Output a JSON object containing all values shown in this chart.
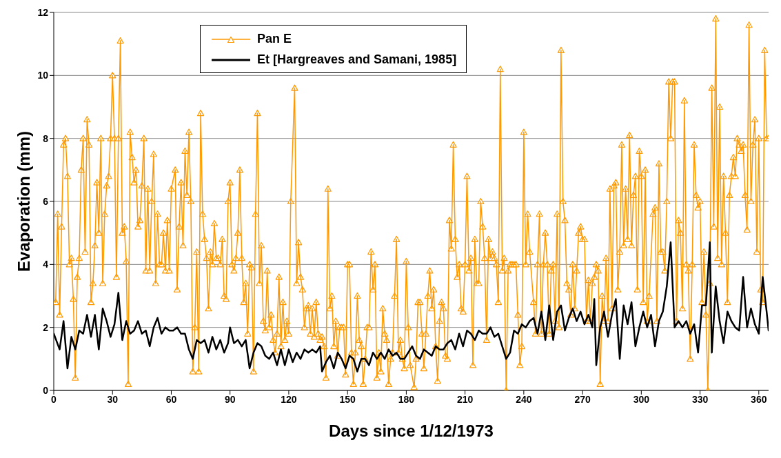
{
  "chart_data": {
    "type": "line",
    "xlabel": "Days since 1/12/1973",
    "ylabel": "Evaporation (mm)",
    "xlim": [
      0,
      365
    ],
    "xticks": [
      0,
      30,
      60,
      90,
      120,
      150,
      180,
      210,
      240,
      270,
      300,
      330,
      360
    ],
    "ylim": [
      0,
      12
    ],
    "yticks": [
      0,
      2,
      4,
      6,
      8,
      10,
      12
    ],
    "grid": "y",
    "legend": "top",
    "series": [
      {
        "name": "Pan E",
        "color": "#ff9900",
        "marker": "triangle",
        "x": [
          1,
          2,
          3,
          4,
          5,
          6,
          7,
          8,
          9,
          10,
          11,
          12,
          13,
          14,
          15,
          16,
          17,
          18,
          19,
          20,
          21,
          22,
          23,
          24,
          25,
          26,
          27,
          28,
          29,
          30,
          31,
          32,
          33,
          34,
          35,
          36,
          37,
          38,
          39,
          40,
          41,
          42,
          43,
          44,
          45,
          46,
          47,
          48,
          49,
          50,
          51,
          52,
          53,
          54,
          55,
          56,
          57,
          58,
          59,
          60,
          62,
          63,
          64,
          65,
          66,
          67,
          68,
          69,
          70,
          71,
          72,
          73,
          74,
          75,
          76,
          77,
          78,
          79,
          80,
          81,
          82,
          83,
          84,
          85,
          86,
          87,
          88,
          89,
          90,
          91,
          92,
          93,
          94,
          95,
          96,
          97,
          98,
          99,
          100,
          101,
          102,
          103,
          104,
          105,
          106,
          107,
          108,
          109,
          110,
          111,
          112,
          113,
          114,
          115,
          116,
          117,
          118,
          119,
          120,
          121,
          123,
          124,
          125,
          126,
          127,
          128,
          129,
          130,
          131,
          132,
          133,
          134,
          135,
          136,
          137,
          138,
          139,
          140,
          141,
          142,
          143,
          144,
          145,
          146,
          147,
          148,
          149,
          150,
          151,
          152,
          153,
          154,
          155,
          156,
          157,
          158,
          159,
          160,
          161,
          162,
          163,
          164,
          165,
          166,
          167,
          168,
          169,
          170,
          171,
          172,
          173,
          174,
          175,
          176,
          177,
          178,
          179,
          180,
          181,
          182,
          184,
          185,
          186,
          187,
          188,
          189,
          190,
          191,
          192,
          193,
          194,
          195,
          196,
          197,
          198,
          199,
          200,
          201,
          202,
          203,
          204,
          205,
          206,
          207,
          208,
          209,
          210,
          211,
          212,
          213,
          214,
          215,
          216,
          217,
          218,
          219,
          220,
          221,
          222,
          223,
          224,
          225,
          226,
          227,
          228,
          229,
          230,
          231,
          232,
          233,
          234,
          235,
          236,
          237,
          238,
          239,
          240,
          241,
          242,
          243,
          245,
          246,
          247,
          248,
          249,
          250,
          251,
          252,
          253,
          254,
          255,
          256,
          257,
          258,
          259,
          260,
          261,
          262,
          263,
          264,
          265,
          266,
          267,
          268,
          269,
          270,
          271,
          272,
          273,
          274,
          275,
          276,
          277,
          278,
          279,
          280,
          281,
          282,
          283,
          284,
          285,
          286,
          287,
          288,
          289,
          290,
          291,
          292,
          293,
          294,
          295,
          296,
          297,
          298,
          299,
          300,
          301,
          302,
          303,
          304,
          306,
          307,
          308,
          309,
          310,
          311,
          312,
          313,
          314,
          315,
          316,
          317,
          318,
          319,
          320,
          321,
          322,
          323,
          324,
          325,
          326,
          327,
          328,
          329,
          330,
          331,
          332,
          333,
          334,
          335,
          336,
          337,
          338,
          339,
          340,
          341,
          342,
          343,
          344,
          345,
          346,
          347,
          348,
          349,
          350,
          351,
          352,
          353,
          354,
          355,
          356,
          357,
          358,
          359,
          360,
          361,
          362,
          363,
          364,
          365
        ],
        "values": [
          2.8,
          5.6,
          2.4,
          5.2,
          7.8,
          8.0,
          6.8,
          4.0,
          4.2,
          2.9,
          0.4,
          3.6,
          4.2,
          7.0,
          8.0,
          4.4,
          8.6,
          7.8,
          2.8,
          3.4,
          4.6,
          6.6,
          5.0,
          8.0,
          3.4,
          5.6,
          6.5,
          6.8,
          8.0,
          10.0,
          8.0,
          3.6,
          8.0,
          11.1,
          5.0,
          5.2,
          4.1,
          0.2,
          8.2,
          7.4,
          6.6,
          7.0,
          5.2,
          5.4,
          6.5,
          8.0,
          3.8,
          6.4,
          3.8,
          6.0,
          7.5,
          3.4,
          5.6,
          4.0,
          4.0,
          5.0,
          3.8,
          5.4,
          3.8,
          6.4,
          7.0,
          3.2,
          5.2,
          6.6,
          4.6,
          7.6,
          6.2,
          8.2,
          6.0,
          0.6,
          2.0,
          4.4,
          0.6,
          8.8,
          5.6,
          4.8,
          4.2,
          2.6,
          4.4,
          4.0,
          5.3,
          4.2,
          4.2,
          4.0,
          4.8,
          3.0,
          2.9,
          6.0,
          6.6,
          4.0,
          3.8,
          4.2,
          5.0,
          7.0,
          4.2,
          2.8,
          3.4,
          1.8,
          4.0,
          3.9,
          0.6,
          5.6,
          8.8,
          3.4,
          4.6,
          2.2,
          1.9,
          3.8,
          2.0,
          2.4,
          1.6,
          1.2,
          1.8,
          3.6,
          1.4,
          2.8,
          1.6,
          2.2,
          1.8,
          6.0,
          9.6,
          3.4,
          4.7,
          3.6,
          3.2,
          2.0,
          2.6,
          2.7,
          1.8,
          2.6,
          1.7,
          2.8,
          1.8,
          1.6,
          1.7,
          1.4,
          0.4,
          6.4,
          2.6,
          3.0,
          1.4,
          2.2,
          1.1,
          2.0,
          2.0,
          2.0,
          0.5,
          4.0,
          4.0,
          1.2,
          0.2,
          1.2,
          3.0,
          1.6,
          1.4,
          0.2,
          1.0,
          2.0,
          2.0,
          4.4,
          3.2,
          4.0,
          0.4,
          1.2,
          0.6,
          2.6,
          1.8,
          1.6,
          0.2,
          1.0,
          1.2,
          3.0,
          4.8,
          1.2,
          1.6,
          1.0,
          0.7,
          4.1,
          2.0,
          0.8,
          0.1,
          1.0,
          2.8,
          2.8,
          1.8,
          0.7,
          1.8,
          3.0,
          3.8,
          2.6,
          3.2,
          1.4,
          0.3,
          2.2,
          2.8,
          2.6,
          1.1,
          1.0,
          5.4,
          4.5,
          7.8,
          4.8,
          3.6,
          4.0,
          2.6,
          2.5,
          4.0,
          6.8,
          3.8,
          4.2,
          0.8,
          4.8,
          3.4,
          3.4,
          6.0,
          5.2,
          4.2,
          1.6,
          4.8,
          4.2,
          4.4,
          4.2,
          4.0,
          2.8,
          10.2,
          3.8,
          4.2,
          0.0,
          3.8,
          4.0,
          4.0,
          4.0,
          4.0,
          2.4,
          0.8,
          1.4,
          8.2,
          4.0,
          5.6,
          4.4,
          2.8,
          1.8,
          4.0,
          5.6,
          1.8,
          4.0,
          5.0,
          4.0,
          1.8,
          3.8,
          4.0,
          2.2,
          5.6,
          2.0,
          10.8,
          6.0,
          5.4,
          3.4,
          3.2,
          2.4,
          4.0,
          2.6,
          3.8,
          5.0,
          5.2,
          4.8,
          4.8,
          2.2,
          3.5,
          2.2,
          3.4,
          3.6,
          4.0,
          3.8,
          0.2,
          3.0,
          2.2,
          4.2,
          2.2,
          6.4,
          2.6,
          6.5,
          6.6,
          3.2,
          4.4,
          7.8,
          4.6,
          6.4,
          4.8,
          8.1,
          4.6,
          6.2,
          6.8,
          3.2,
          7.6,
          6.8,
          2.8,
          7.0,
          2.2,
          3.0,
          5.6,
          5.8,
          2.2,
          7.2,
          4.4,
          4.4,
          3.8,
          6.0,
          9.8,
          8.0,
          9.8,
          9.8,
          2.2,
          5.4,
          5.0,
          2.6,
          9.2,
          4.0,
          3.8,
          1.0,
          4.0,
          7.8,
          6.2,
          5.8,
          6.0,
          2.8,
          4.4,
          2.4,
          0.0,
          3.4,
          9.6,
          5.2,
          11.8,
          4.2,
          9.0,
          4.0,
          6.8,
          5.0,
          2.8,
          6.2,
          6.8,
          7.4,
          6.8,
          8.0,
          7.8,
          7.6,
          7.8,
          6.2,
          5.1,
          11.6,
          6.0,
          7.8,
          8.6,
          4.4,
          8.0,
          3.2,
          2.8,
          10.8,
          8.0,
          8.0
        ]
      },
      {
        "name": "Et [Hargreaves and Samani, 1985]",
        "color": "#000000",
        "marker": "none",
        "x": [
          0,
          3,
          5,
          7,
          9,
          11,
          13,
          15,
          17,
          19,
          21,
          23,
          25,
          27,
          29,
          31,
          33,
          35,
          37,
          39,
          41,
          43,
          45,
          47,
          49,
          51,
          53,
          55,
          57,
          59,
          61,
          63,
          65,
          67,
          69,
          71,
          73,
          75,
          77,
          79,
          81,
          83,
          85,
          87,
          89,
          90,
          92,
          94,
          96,
          98,
          100,
          102,
          104,
          106,
          108,
          110,
          112,
          114,
          116,
          118,
          120,
          122,
          124,
          126,
          128,
          130,
          132,
          134,
          136,
          137,
          139,
          141,
          143,
          145,
          147,
          149,
          151,
          153,
          155,
          157,
          159,
          161,
          163,
          165,
          167,
          169,
          171,
          173,
          175,
          177,
          179,
          181,
          183,
          185,
          187,
          189,
          191,
          193,
          195,
          197,
          199,
          201,
          203,
          205,
          207,
          209,
          211,
          213,
          215,
          217,
          219,
          221,
          223,
          225,
          227,
          229,
          231,
          233,
          235,
          237,
          239,
          241,
          243,
          245,
          247,
          249,
          251,
          253,
          255,
          257,
          259,
          261,
          263,
          265,
          267,
          269,
          271,
          273,
          275,
          276,
          277,
          279,
          281,
          283,
          285,
          287,
          289,
          291,
          293,
          295,
          297,
          299,
          301,
          303,
          305,
          307,
          309,
          311,
          313,
          315,
          317,
          319,
          321,
          323,
          325,
          327,
          329,
          331,
          333,
          335,
          336,
          338,
          340,
          342,
          344,
          346,
          348,
          350,
          352,
          354,
          356,
          358,
          360,
          362,
          364,
          365
        ],
        "values": [
          1.8,
          1.3,
          2.2,
          0.7,
          1.7,
          1.3,
          1.9,
          1.8,
          2.4,
          1.7,
          2.4,
          1.3,
          2.6,
          2.2,
          1.7,
          2.1,
          3.1,
          1.6,
          2.2,
          1.8,
          1.9,
          2.2,
          1.8,
          1.9,
          1.4,
          2.0,
          2.3,
          1.8,
          2.0,
          1.9,
          1.9,
          2.0,
          1.8,
          1.8,
          1.3,
          1.0,
          1.6,
          1.5,
          1.6,
          1.2,
          1.7,
          1.3,
          1.6,
          1.2,
          1.5,
          2.0,
          1.5,
          1.6,
          1.4,
          1.6,
          0.7,
          1.2,
          1.5,
          1.4,
          1.1,
          1.0,
          1.2,
          0.8,
          1.3,
          0.8,
          1.3,
          0.9,
          1.2,
          1.0,
          1.3,
          1.2,
          1.3,
          1.2,
          1.4,
          0.6,
          0.9,
          1.1,
          0.7,
          1.2,
          1.0,
          0.7,
          1.1,
          1.0,
          0.6,
          1.0,
          1.0,
          0.8,
          1.2,
          1.0,
          1.2,
          1.0,
          1.3,
          1.1,
          1.2,
          1.0,
          1.0,
          1.2,
          1.4,
          1.1,
          1.0,
          1.3,
          1.2,
          1.1,
          1.4,
          1.3,
          1.3,
          1.5,
          1.6,
          1.3,
          1.8,
          1.4,
          1.9,
          1.8,
          1.6,
          1.9,
          1.8,
          1.8,
          2.0,
          1.7,
          1.8,
          1.4,
          1.0,
          1.2,
          1.9,
          1.8,
          2.1,
          2.0,
          2.2,
          2.3,
          1.8,
          2.5,
          1.6,
          2.7,
          1.6,
          2.5,
          2.7,
          1.9,
          2.3,
          2.6,
          2.2,
          2.5,
          2.1,
          2.4,
          2.0,
          2.9,
          0.8,
          2.0,
          2.5,
          1.7,
          2.4,
          2.9,
          1.0,
          2.7,
          2.1,
          2.8,
          1.4,
          2.0,
          2.5,
          2.0,
          2.4,
          1.4,
          2.2,
          2.5,
          3.3,
          4.7,
          2.0,
          2.2,
          2.0,
          2.2,
          1.8,
          2.1,
          1.2,
          2.7,
          2.7,
          4.7,
          1.2,
          3.3,
          2.2,
          1.5,
          2.5,
          2.2,
          2.0,
          1.9,
          3.6,
          2.0,
          2.6,
          2.1,
          1.8,
          3.6,
          2.5,
          1.9
        ]
      }
    ]
  }
}
